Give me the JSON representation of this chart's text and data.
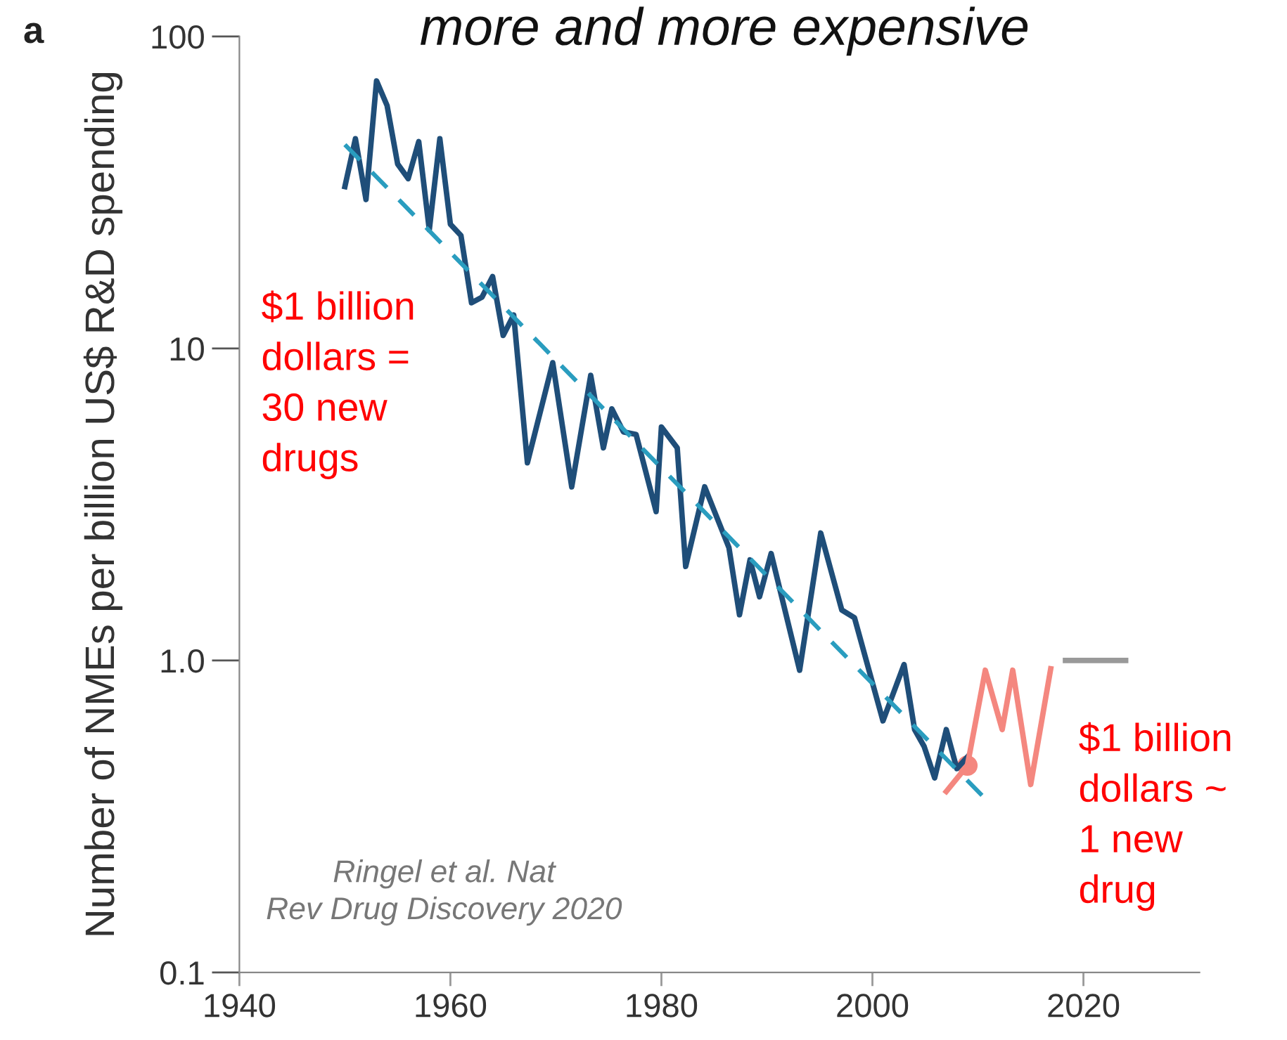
{
  "chart_data": {
    "type": "line",
    "title": "more and more expensive",
    "ylabel": "Number of NMEs per billion US$ R&D spending",
    "log": "y",
    "xlim": [
      1940,
      2031
    ],
    "xticks": [
      1940,
      1960,
      1980,
      2000,
      2020
    ],
    "ylim": [
      0.1,
      100
    ],
    "yticks": [
      0.1,
      {
        "value": 10,
        "label": "10"
      },
      {
        "value": 1,
        "label": "1.0"
      },
      100
    ],
    "grid": false,
    "legend": false,
    "series": [
      {
        "color": "#1f4e79",
        "x": [
          1950,
          1951,
          1952,
          1953,
          1954,
          1955,
          1956,
          1957,
          1958,
          1959,
          1960,
          1961,
          1962,
          1963,
          1964,
          1965,
          1966,
          1967.3,
          1969.7,
          1971.5,
          1973.3,
          1974.5,
          1975.3,
          1976.4,
          1977.6,
          1979.5,
          1980,
          1981.5,
          1982.3,
          1984.1,
          1986.4,
          1987.4,
          1988.4,
          1989.3,
          1990.4,
          1993.1,
          1995.1,
          1997.1,
          1998.3,
          2001,
          2003,
          2004,
          2004.9,
          2005.9,
          2007,
          2008,
          2009
        ],
        "values": [
          33,
          47,
          30,
          72,
          60,
          39,
          35,
          46,
          24,
          47,
          25,
          23,
          14,
          14.6,
          17,
          11,
          12.8,
          4.3,
          9.0,
          3.6,
          8.2,
          4.8,
          6.4,
          5.4,
          5.3,
          3.0,
          5.6,
          4.8,
          2.0,
          3.6,
          2.3,
          1.4,
          2.1,
          1.6,
          2.2,
          0.93,
          2.56,
          1.45,
          1.37,
          0.64,
          0.97,
          0.6,
          0.53,
          0.42,
          0.6,
          0.45,
          0.49
        ]
      },
      {
        "type": "line",
        "line_style": "dashed",
        "color": "#2a9dbf",
        "x": [
          1950,
          2010.7
        ],
        "values": [
          45,
          0.36
        ]
      },
      {
        "color": "#f4877f",
        "x": [
          2007,
          2009,
          2010.7,
          2012.3,
          2013.3,
          2015,
          2016.9
        ],
        "values": [
          0.38,
          0.46,
          0.93,
          0.6,
          0.93,
          0.4,
          0.94
        ]
      },
      {
        "type": "scatter",
        "marker": "circle",
        "color": "#f4877f",
        "x": [
          2009
        ],
        "values": [
          0.46
        ]
      },
      {
        "color": "#999999",
        "x": [
          2018.3,
          2024
        ],
        "values": [
          1.0,
          1.0
        ]
      }
    ],
    "annotations": [
      "a",
      "$1 billion dollars = 30 new drugs",
      "$1 billion dollars ~ 1 new drug",
      "Ringel et al. Nat Rev Drug Discovery 2020"
    ]
  }
}
